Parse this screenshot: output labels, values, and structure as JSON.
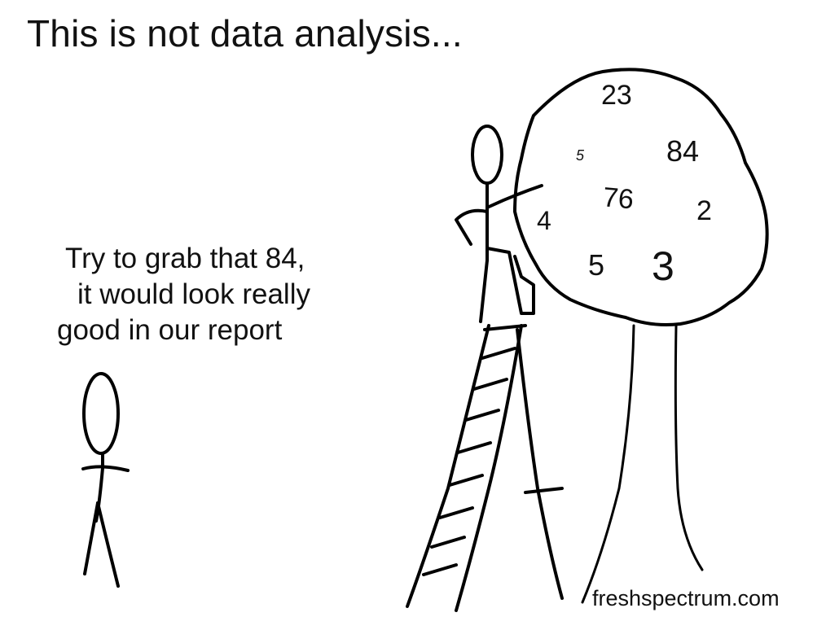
{
  "title": "This is not data analysis...",
  "speech": {
    "line1": "Try to grab that 84,",
    "line2": "it would look really",
    "line3": "good in our report"
  },
  "tree_numbers": [
    "23",
    "5",
    "84",
    "76",
    "4",
    "2",
    "5",
    "3"
  ],
  "credit": "freshspectrum.com",
  "colors": {
    "ink": "#000000",
    "background": "#ffffff"
  }
}
